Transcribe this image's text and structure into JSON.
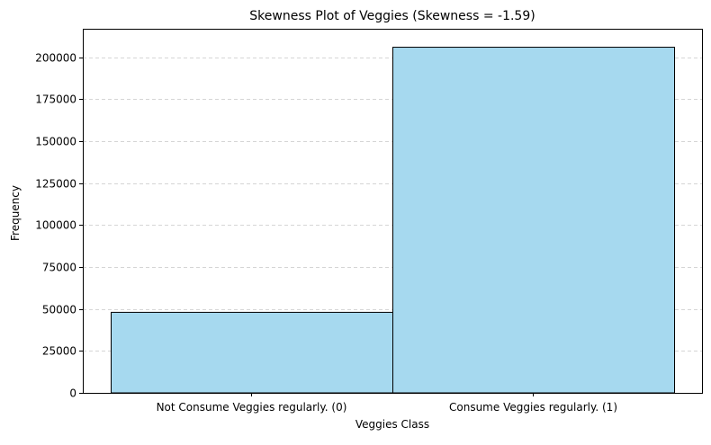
{
  "chart_data": {
    "type": "bar",
    "title": "Skewness Plot of Veggies (Skewness = -1.59)",
    "xlabel": "Veggies Class",
    "ylabel": "Frequency",
    "categories": [
      "Not Consume Veggies regularly. (0)",
      "Consume Veggies regularly. (1)"
    ],
    "values": [
      48000,
      206000
    ],
    "ylim": [
      0,
      217000
    ],
    "yticks": [
      0,
      25000,
      50000,
      75000,
      100000,
      125000,
      150000,
      175000,
      200000
    ],
    "grid": {
      "axis": "y",
      "style": "dashed"
    },
    "colors": {
      "bar_fill": "#a6d9ef",
      "bar_edge": "#000000",
      "grid": "#c8c8c8"
    }
  }
}
